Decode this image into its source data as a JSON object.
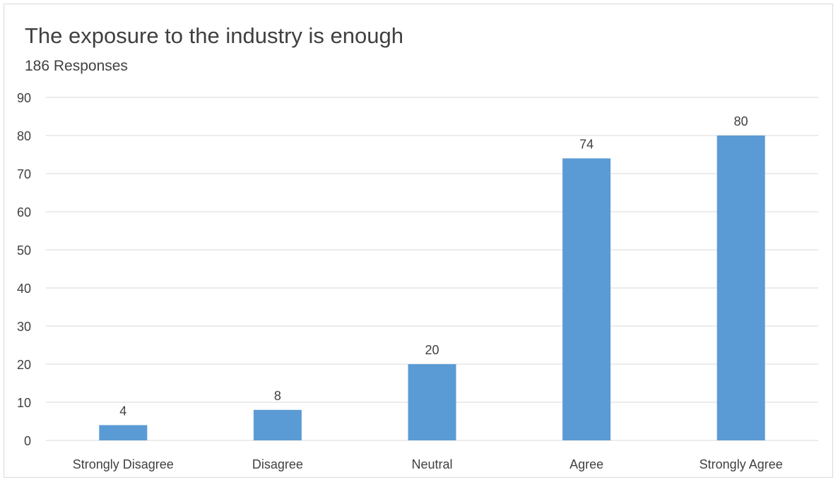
{
  "chart_data": {
    "type": "bar",
    "title": "The exposure to the industry is enough",
    "subtitle": "186 Responses",
    "categories": [
      "Strongly Disagree",
      "Disagree",
      "Neutral",
      "Agree",
      "Strongly Agree"
    ],
    "values": [
      4,
      8,
      20,
      74,
      80
    ],
    "data_labels": [
      "4",
      "8",
      "20",
      "74",
      "80"
    ],
    "ylim": [
      0,
      90
    ],
    "yticks": [
      0,
      10,
      20,
      30,
      40,
      50,
      60,
      70,
      80,
      90
    ],
    "ytick_labels": [
      "0",
      "10",
      "20",
      "30",
      "40",
      "50",
      "60",
      "70",
      "80",
      "90"
    ],
    "grid": true,
    "legend": "none",
    "bar_color": "#5b9bd5",
    "grid_color": "#d9d9d9",
    "text_color": "#404040"
  }
}
